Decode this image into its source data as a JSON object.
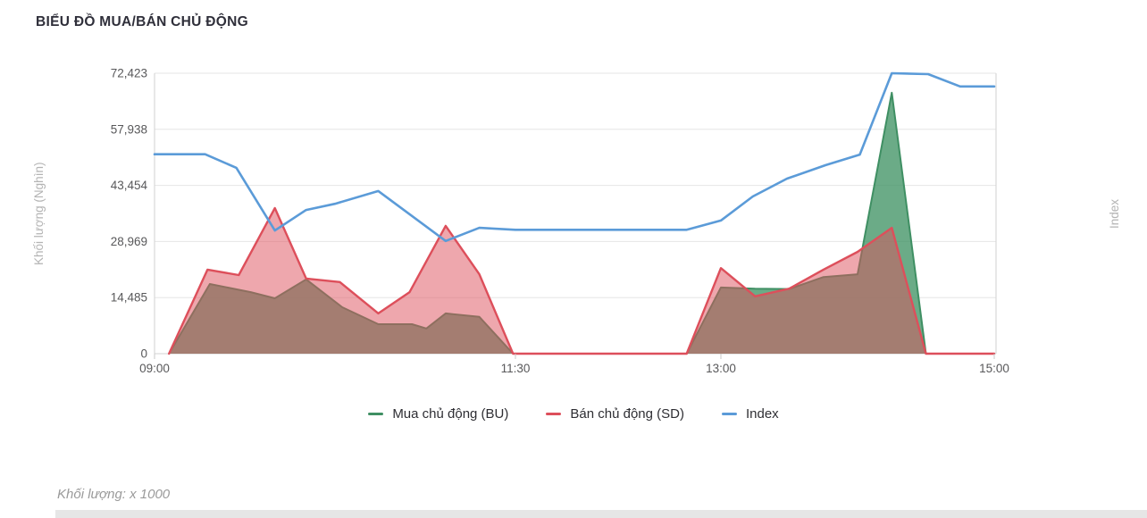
{
  "title": "BIỂU ĐỒ MUA/BÁN CHỦ ĐỘNG",
  "axes": {
    "left_title": "Khối lượng (Nghìn)",
    "right_title": "Index",
    "y_tick_labels": [
      "0",
      "14,485",
      "28,969",
      "43,454",
      "57,938",
      "72,423"
    ],
    "x_tick_labels": [
      "09:00",
      "11:30",
      "13:00",
      "15:00"
    ]
  },
  "legend": {
    "items": [
      {
        "label": "Mua chủ động (BU)",
        "color": "#3f8f63"
      },
      {
        "label": "Bán chủ động (SD)",
        "color": "#dd4f5b"
      },
      {
        "label": "Index",
        "color": "#5b9bd8"
      }
    ]
  },
  "footer_note": "Khối lượng: x 1000",
  "colors": {
    "grid": "#e6e6e6",
    "axis_line": "#d2d2d2",
    "tick_mark": "#c8c8c8",
    "tick_label": "#58585a",
    "axis_title": "#b4b4b4",
    "bu_line": "#3f8f63",
    "bu_fill": "rgba(70,150,105,0.8)",
    "sd_line": "#dd4f5b",
    "sd_fill": "rgba(221,79,91,0.5)",
    "index_line": "#5b9bd8"
  },
  "chart_data": {
    "type": "area",
    "title": "BIỂU ĐỒ MUA/BÁN CHỦ ĐỘNG",
    "ylabel": "Khối lượng (Nghìn)",
    "ylabel_right": "Index",
    "ylim": [
      0,
      72423
    ],
    "y_ticks": [
      0,
      14485,
      28969,
      43454,
      57938,
      72423
    ],
    "x_ticks": [
      "09:00",
      "11:30",
      "13:00",
      "15:00"
    ],
    "grid": true,
    "legend_position": "bottom",
    "unit_note": "Khối lượng: x 1000",
    "series": [
      {
        "name": "Mua chủ động (BU)",
        "type": "area",
        "points": [
          [
            "09:06",
            0
          ],
          [
            "09:23",
            18000
          ],
          [
            "09:40",
            15900
          ],
          [
            "09:50",
            14300
          ],
          [
            "10:03",
            19200
          ],
          [
            "10:18",
            12000
          ],
          [
            "10:33",
            7600
          ],
          [
            "10:47",
            7600
          ],
          [
            "10:53",
            6500
          ],
          [
            "11:01",
            10400
          ],
          [
            "11:15",
            9500
          ],
          [
            "11:29",
            0
          ],
          [
            "12:45",
            0
          ],
          [
            "13:00",
            17100
          ],
          [
            "13:15",
            16800
          ],
          [
            "13:30",
            16700
          ],
          [
            "13:45",
            19800
          ],
          [
            "14:00",
            20500
          ],
          [
            "14:15",
            67400
          ],
          [
            "14:30",
            0
          ],
          [
            "15:00",
            0
          ]
        ]
      },
      {
        "name": "Bán chủ động (SD)",
        "type": "area",
        "points": [
          [
            "09:06",
            0
          ],
          [
            "09:22",
            21700
          ],
          [
            "09:35",
            20300
          ],
          [
            "09:50",
            37600
          ],
          [
            "10:03",
            19400
          ],
          [
            "10:17",
            18500
          ],
          [
            "10:33",
            10400
          ],
          [
            "10:46",
            15900
          ],
          [
            "11:01",
            33000
          ],
          [
            "11:15",
            20500
          ],
          [
            "11:29",
            0
          ],
          [
            "12:45",
            0
          ],
          [
            "13:00",
            22100
          ],
          [
            "13:15",
            14800
          ],
          [
            "13:30",
            16800
          ],
          [
            "13:45",
            21700
          ],
          [
            "14:00",
            26300
          ],
          [
            "14:15",
            32500
          ],
          [
            "14:30",
            0
          ],
          [
            "15:00",
            0
          ]
        ]
      },
      {
        "name": "Index",
        "type": "line",
        "points": [
          [
            "09:00",
            51500
          ],
          [
            "09:21",
            51500
          ],
          [
            "09:34",
            48000
          ],
          [
            "09:50",
            31800
          ],
          [
            "10:03",
            37100
          ],
          [
            "10:15",
            38700
          ],
          [
            "10:33",
            42000
          ],
          [
            "11:01",
            29100
          ],
          [
            "11:15",
            32500
          ],
          [
            "11:30",
            32000
          ],
          [
            "12:45",
            32000
          ],
          [
            "13:00",
            34400
          ],
          [
            "13:14",
            40600
          ],
          [
            "13:29",
            45200
          ],
          [
            "13:46",
            48700
          ],
          [
            "14:01",
            51400
          ],
          [
            "14:15",
            72423
          ],
          [
            "14:31",
            72200
          ],
          [
            "14:45",
            69000
          ],
          [
            "15:00",
            69000
          ]
        ]
      }
    ]
  }
}
